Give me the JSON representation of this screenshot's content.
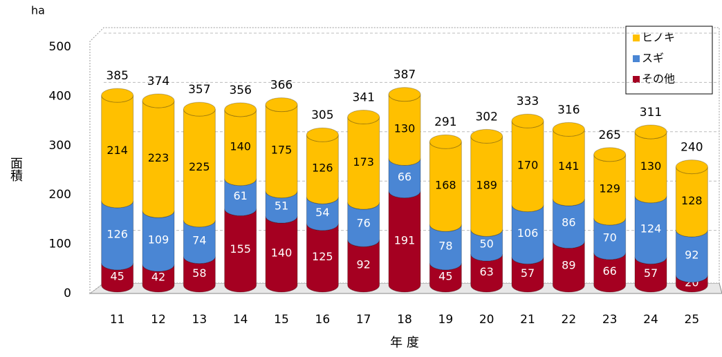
{
  "chart_data": {
    "type": "bar",
    "stacked": true,
    "unit_label": "ha",
    "y_label": "面積",
    "x_label": "年 度",
    "categories": [
      "11",
      "12",
      "13",
      "14",
      "15",
      "16",
      "17",
      "18",
      "19",
      "20",
      "21",
      "22",
      "23",
      "24",
      "25"
    ],
    "series": [
      {
        "name": "その他",
        "color": "#a50021",
        "values": [
          45,
          42,
          58,
          155,
          140,
          125,
          92,
          191,
          45,
          63,
          57,
          89,
          66,
          57,
          20
        ]
      },
      {
        "name": "スギ",
        "color": "#4a86d4",
        "values": [
          126,
          109,
          74,
          61,
          51,
          54,
          76,
          66,
          78,
          50,
          106,
          86,
          70,
          124,
          92
        ]
      },
      {
        "name": "ヒノキ",
        "color": "#ffc000",
        "values": [
          214,
          223,
          225,
          140,
          175,
          126,
          173,
          130,
          168,
          189,
          170,
          141,
          129,
          130,
          128
        ]
      }
    ],
    "totals": [
      385,
      374,
      357,
      356,
      366,
      305,
      341,
      387,
      291,
      302,
      333,
      316,
      265,
      311,
      240
    ],
    "ylim": [
      0,
      500
    ],
    "yticks": [
      0,
      100,
      200,
      300,
      400,
      500
    ],
    "grid": true,
    "legend": "top-right"
  }
}
